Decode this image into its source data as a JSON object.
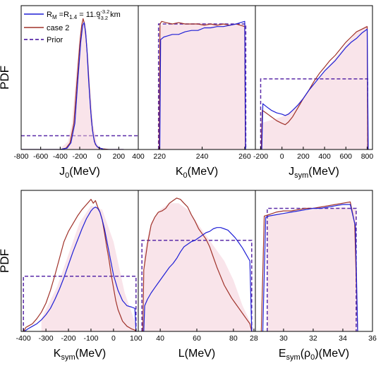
{
  "colors": {
    "blue": "#1f1fd6",
    "red": "#a0322a",
    "prior": "#5a2aa8",
    "band": "#f3c9d6"
  },
  "legend": {
    "items": [
      {
        "key": "blue",
        "pre": "R",
        "pre_sub": "M",
        "mid": " =R",
        "mid_sub": "1.4",
        "eq": " = 11.9",
        "sup": "-3.2",
        "sub": "+3.2",
        "post": " km"
      },
      {
        "key": "red",
        "label": "case 2"
      },
      {
        "key": "prior",
        "label": "Prior"
      }
    ]
  },
  "chart_data": [
    {
      "type": "line",
      "panel": "J0",
      "ylabel": "PDF",
      "xlabel": {
        "main": "J",
        "sub": "0",
        "rest": "(MeV)"
      },
      "xlim": [
        -800,
        400
      ],
      "ylim": [
        0,
        1.1
      ],
      "xticks": [
        -800,
        -600,
        -400,
        -200,
        0,
        200,
        400
      ],
      "series": [
        {
          "key": "prior",
          "style": "dash",
          "x": [
            -800,
            400
          ],
          "y": [
            0.105,
            0.105
          ]
        },
        {
          "key": "band",
          "x": [
            -380,
            -320,
            -280,
            -240,
            -200,
            -170,
            -150,
            -130,
            -100,
            -60,
            -20,
            20,
            60
          ],
          "y": [
            0.02,
            0.06,
            0.2,
            0.55,
            0.88,
            1.0,
            0.98,
            0.9,
            0.55,
            0.18,
            0.04,
            0.01,
            0.0
          ]
        },
        {
          "key": "red",
          "x": [
            -800,
            -400,
            -340,
            -300,
            -260,
            -230,
            -200,
            -180,
            -165,
            -150,
            -135,
            -120,
            -100,
            -80,
            -60,
            -40,
            -20,
            0,
            40,
            100,
            200,
            250
          ],
          "y": [
            0.0,
            0.0,
            0.01,
            0.05,
            0.2,
            0.5,
            0.8,
            0.95,
            1.0,
            0.96,
            0.85,
            0.7,
            0.45,
            0.22,
            0.1,
            0.04,
            0.02,
            0.01,
            0.005,
            0.0,
            0.0,
            0.0
          ]
        },
        {
          "key": "blue",
          "x": [
            -800,
            -400,
            -330,
            -290,
            -250,
            -220,
            -190,
            -170,
            -155,
            -140,
            -125,
            -110,
            -90,
            -70,
            -50,
            -30,
            -10,
            10,
            50,
            100,
            200,
            250
          ],
          "y": [
            0.0,
            0.0,
            0.01,
            0.05,
            0.2,
            0.52,
            0.82,
            0.95,
            0.97,
            0.9,
            0.75,
            0.55,
            0.32,
            0.15,
            0.06,
            0.03,
            0.015,
            0.01,
            0.0,
            0.0,
            0.0,
            0.0
          ]
        }
      ]
    },
    {
      "type": "line",
      "panel": "K0",
      "ylabel": "",
      "xlabel": {
        "main": "K",
        "sub": "0",
        "rest": "(MeV)"
      },
      "xlim": [
        210,
        265
      ],
      "ylim": [
        0,
        1.1
      ],
      "xticks": [
        220,
        240,
        260
      ],
      "series": [
        {
          "key": "band",
          "x": [
            220,
            230,
            240,
            250,
            260
          ],
          "y": [
            0.95,
            0.96,
            0.97,
            0.96,
            0.95
          ]
        },
        {
          "key": "prior",
          "style": "dash",
          "x": [
            219.5,
            219.5,
            260.5,
            260.5
          ],
          "y": [
            0,
            0.96,
            0.96,
            0
          ]
        },
        {
          "key": "red",
          "x": [
            219.8,
            220.2,
            221,
            223,
            226,
            229,
            232,
            235,
            238,
            241,
            244,
            247,
            250,
            253,
            256,
            258,
            260,
            260.3
          ],
          "y": [
            0,
            0.96,
            0.98,
            0.97,
            0.96,
            0.97,
            0.96,
            0.96,
            0.96,
            0.95,
            0.96,
            0.95,
            0.96,
            0.95,
            0.96,
            0.95,
            0.94,
            0
          ]
        },
        {
          "key": "blue",
          "x": [
            220.1,
            220.5,
            222,
            224,
            226,
            229,
            232,
            235,
            238,
            241,
            244,
            247,
            250,
            253,
            256,
            258,
            260,
            260.4
          ],
          "y": [
            0,
            0.84,
            0.86,
            0.87,
            0.88,
            0.88,
            0.9,
            0.91,
            0.91,
            0.93,
            0.93,
            0.94,
            0.94,
            0.95,
            0.96,
            0.97,
            0.98,
            0
          ]
        }
      ]
    },
    {
      "type": "line",
      "panel": "Jsym",
      "ylabel": "",
      "xlabel": {
        "main": "J",
        "sub": "sym",
        "rest": "(MeV)"
      },
      "xlim": [
        -250,
        850
      ],
      "ylim": [
        0,
        1.1
      ],
      "xticks": [
        -200,
        0,
        200,
        400,
        600,
        800
      ],
      "series": [
        {
          "key": "band",
          "x": [
            -200,
            0,
            100,
            300,
            500,
            700,
            800
          ],
          "y": [
            0.2,
            0.25,
            0.3,
            0.5,
            0.7,
            0.9,
            0.95
          ]
        },
        {
          "key": "prior",
          "style": "dash",
          "x": [
            -200,
            -200,
            805,
            805
          ],
          "y": [
            0,
            0.54,
            0.54,
            0
          ]
        },
        {
          "key": "red",
          "x": [
            -195,
            -185,
            -150,
            -100,
            -50,
            0,
            30,
            60,
            100,
            150,
            200,
            250,
            300,
            350,
            400,
            450,
            500,
            550,
            600,
            650,
            700,
            750,
            800,
            805
          ],
          "y": [
            0,
            0.3,
            0.28,
            0.25,
            0.22,
            0.2,
            0.19,
            0.21,
            0.25,
            0.32,
            0.39,
            0.45,
            0.52,
            0.58,
            0.63,
            0.68,
            0.72,
            0.77,
            0.82,
            0.86,
            0.9,
            0.92,
            0.94,
            0
          ]
        },
        {
          "key": "blue",
          "x": [
            -190,
            -180,
            -150,
            -100,
            -50,
            0,
            30,
            60,
            100,
            150,
            200,
            250,
            300,
            350,
            400,
            450,
            500,
            550,
            600,
            650,
            700,
            750,
            800,
            810
          ],
          "y": [
            0,
            0.35,
            0.33,
            0.3,
            0.28,
            0.27,
            0.26,
            0.27,
            0.3,
            0.34,
            0.39,
            0.45,
            0.5,
            0.55,
            0.6,
            0.64,
            0.68,
            0.73,
            0.78,
            0.82,
            0.85,
            0.89,
            0.92,
            0
          ]
        }
      ]
    },
    {
      "type": "line",
      "panel": "Ksym",
      "ylabel": "PDF",
      "xlabel": {
        "main": "K",
        "sub": "sym",
        "rest": "(MeV)"
      },
      "xlim": [
        -410,
        110
      ],
      "ylim": [
        0,
        1.1
      ],
      "xticks": [
        -400,
        -300,
        -200,
        -100,
        0,
        100
      ],
      "series": [
        {
          "key": "band",
          "x": [
            -320,
            -250,
            -200,
            -150,
            -100,
            -50,
            0,
            50,
            100
          ],
          "y": [
            0.1,
            0.35,
            0.6,
            0.85,
            0.98,
            0.95,
            0.7,
            0.3,
            0.05
          ]
        },
        {
          "key": "prior",
          "style": "dash",
          "x": [
            -400,
            -400,
            100,
            100
          ],
          "y": [
            0,
            0.43,
            0.43,
            0
          ]
        },
        {
          "key": "red",
          "x": [
            -398,
            -390,
            -380,
            -360,
            -340,
            -320,
            -300,
            -280,
            -260,
            -240,
            -220,
            -200,
            -180,
            -160,
            -140,
            -120,
            -100,
            -90,
            -80,
            -70,
            -60,
            -50,
            -40,
            -30,
            -20,
            -10,
            0,
            10,
            20,
            40,
            60,
            80,
            95,
            100
          ],
          "y": [
            0,
            0.03,
            0.04,
            0.06,
            0.1,
            0.15,
            0.22,
            0.32,
            0.44,
            0.57,
            0.7,
            0.78,
            0.84,
            0.9,
            0.95,
            0.99,
            1.03,
            1.0,
            1.02,
            0.97,
            0.93,
            0.87,
            0.77,
            0.66,
            0.56,
            0.44,
            0.34,
            0.24,
            0.17,
            0.08,
            0.04,
            0.02,
            0.01,
            0
          ]
        },
        {
          "key": "blue",
          "x": [
            -396,
            -380,
            -360,
            -340,
            -320,
            -300,
            -280,
            -260,
            -240,
            -220,
            -200,
            -180,
            -160,
            -140,
            -120,
            -100,
            -90,
            -80,
            -70,
            -60,
            -50,
            -40,
            -30,
            -20,
            -10,
            0,
            20,
            40,
            60,
            80,
            95,
            100
          ],
          "y": [
            0,
            0.02,
            0.04,
            0.06,
            0.09,
            0.13,
            0.18,
            0.25,
            0.33,
            0.42,
            0.52,
            0.62,
            0.71,
            0.8,
            0.88,
            0.94,
            0.96,
            0.97,
            0.96,
            0.93,
            0.87,
            0.8,
            0.71,
            0.62,
            0.53,
            0.44,
            0.32,
            0.24,
            0.2,
            0.19,
            0.18,
            0
          ]
        }
      ]
    },
    {
      "type": "line",
      "panel": "L",
      "ylabel": "",
      "xlabel": {
        "main": "L",
        "sub": "",
        "rest": "(MeV)"
      },
      "xlim": [
        28,
        92
      ],
      "ylim": [
        0,
        1.1
      ],
      "xticks": [
        40,
        60,
        80
      ],
      "series": [
        {
          "key": "band",
          "x": [
            31,
            35,
            40,
            45,
            50,
            55,
            60,
            65,
            70,
            75,
            80,
            85,
            90
          ],
          "y": [
            0.6,
            0.85,
            0.95,
            1.0,
            1.0,
            0.95,
            0.85,
            0.75,
            0.65,
            0.55,
            0.4,
            0.2,
            0.05
          ]
        },
        {
          "key": "prior",
          "style": "dash",
          "x": [
            30,
            30,
            90,
            90
          ],
          "y": [
            0,
            0.71,
            0.71,
            0
          ]
        },
        {
          "key": "red",
          "x": [
            30.5,
            31,
            33,
            35,
            37,
            39,
            41,
            43,
            45,
            47,
            49,
            51,
            53,
            55,
            57,
            59,
            61,
            63,
            65,
            67,
            69,
            71,
            73,
            75,
            77,
            79,
            81,
            83,
            85,
            87,
            89,
            90
          ],
          "y": [
            0,
            0.48,
            0.68,
            0.83,
            0.89,
            0.93,
            0.94,
            0.96,
            1.0,
            1.02,
            1.04,
            1.03,
            1.0,
            0.97,
            0.91,
            0.86,
            0.8,
            0.76,
            0.72,
            0.66,
            0.58,
            0.5,
            0.43,
            0.36,
            0.31,
            0.26,
            0.22,
            0.18,
            0.14,
            0.1,
            0.06,
            0
          ]
        },
        {
          "key": "blue",
          "x": [
            31,
            31.5,
            33,
            35,
            37,
            39,
            41,
            43,
            45,
            47,
            49,
            51,
            53,
            55,
            57,
            59,
            61,
            63,
            65,
            67,
            69,
            71,
            73,
            75,
            77,
            79,
            81,
            83,
            85,
            87,
            89,
            90
          ],
          "y": [
            0,
            0.2,
            0.25,
            0.3,
            0.34,
            0.38,
            0.42,
            0.46,
            0.5,
            0.53,
            0.57,
            0.62,
            0.66,
            0.68,
            0.7,
            0.71,
            0.73,
            0.75,
            0.77,
            0.78,
            0.8,
            0.81,
            0.81,
            0.8,
            0.79,
            0.76,
            0.73,
            0.69,
            0.65,
            0.6,
            0.55,
            0
          ]
        }
      ]
    },
    {
      "type": "line",
      "panel": "Esym",
      "ylabel": "",
      "xlabel": {
        "main": "E",
        "sub": "sym",
        "rest": "(ρ",
        "rho_sub": "0",
        "tail": ")(MeV)"
      },
      "xlim": [
        28.1,
        36
      ],
      "ylim": [
        0,
        1.1
      ],
      "xticks": [
        28,
        30,
        32,
        34,
        36
      ],
      "series": [
        {
          "key": "band",
          "x": [
            28.9,
            30,
            31,
            32,
            33,
            34,
            34.9
          ],
          "y": [
            0.9,
            0.92,
            0.94,
            0.95,
            0.96,
            0.97,
            0.95
          ]
        },
        {
          "key": "prior",
          "style": "dash",
          "x": [
            28.9,
            28.9,
            34.9,
            34.9
          ],
          "y": [
            0,
            0.96,
            0.96,
            0
          ]
        },
        {
          "key": "red",
          "x": [
            28.5,
            28.7,
            29,
            29.5,
            30,
            30.5,
            31,
            31.5,
            32,
            32.5,
            33,
            33.5,
            34,
            34.5,
            34.8,
            35
          ],
          "y": [
            0,
            0.9,
            0.91,
            0.93,
            0.94,
            0.94,
            0.95,
            0.96,
            0.96,
            0.97,
            0.98,
            0.99,
            1.0,
            1.01,
            0.84,
            0
          ]
        },
        {
          "key": "blue",
          "x": [
            28.6,
            28.8,
            29,
            29.5,
            30,
            30.5,
            31,
            31.5,
            32,
            32.5,
            33,
            33.5,
            34,
            34.5,
            34.85,
            35
          ],
          "y": [
            0,
            0.89,
            0.9,
            0.91,
            0.92,
            0.93,
            0.94,
            0.95,
            0.96,
            0.96,
            0.97,
            0.98,
            0.99,
            0.99,
            0.82,
            0
          ]
        }
      ]
    }
  ]
}
